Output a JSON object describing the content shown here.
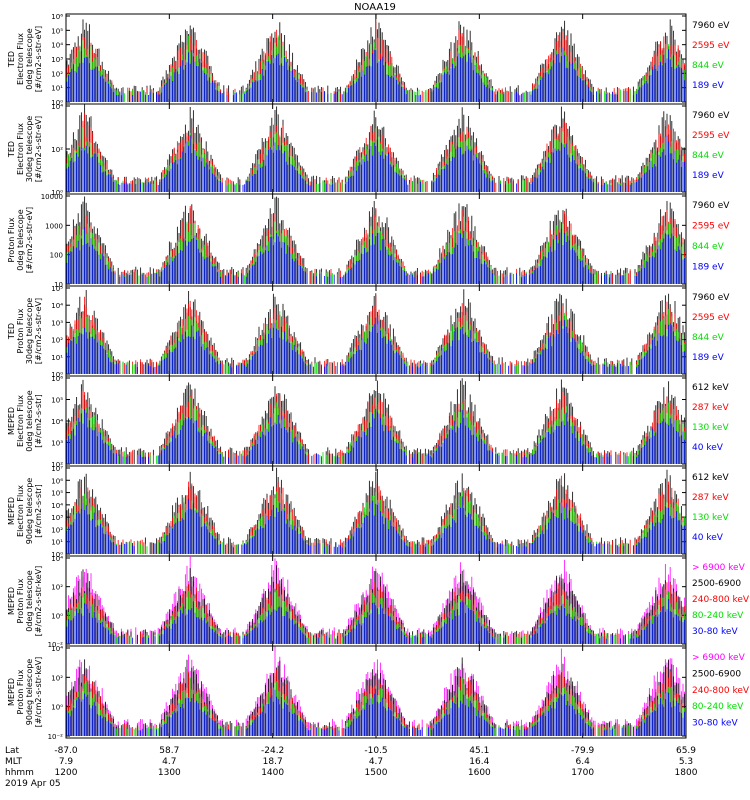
{
  "title": "NOAA19",
  "colors": {
    "black": "#000000",
    "red": "#ff0000",
    "green": "#00e000",
    "blue": "#0000ff",
    "magenta": "#ff00ff"
  },
  "chart_data": [
    {
      "type": "line",
      "ylabel": [
        "TED",
        "Electron Flux",
        "0deg telescope",
        "[#/cm2-s-str-eV]"
      ],
      "yticks": [
        "10⁰",
        "10¹",
        "10²",
        "10³",
        "10⁴",
        "10⁵",
        "10⁶"
      ],
      "ylog": true,
      "legend": [
        {
          "label": "7960 eV",
          "color": "#000000"
        },
        {
          "label": "2595 eV",
          "color": "#ff0000"
        },
        {
          "label": "844 eV",
          "color": "#00e000"
        },
        {
          "label": "189 eV",
          "color": "#0000ff"
        }
      ]
    },
    {
      "type": "line",
      "ylabel": [
        "TED",
        "Electron Flux",
        "30deg telescope",
        "[#/cm2-s-str-eV]"
      ],
      "yticks": [
        "10⁰",
        "10²",
        "10⁴"
      ],
      "ylog": true,
      "legend": [
        {
          "label": "7960 eV",
          "color": "#000000"
        },
        {
          "label": "2595 eV",
          "color": "#ff0000"
        },
        {
          "label": "844 eV",
          "color": "#00e000"
        },
        {
          "label": "189 eV",
          "color": "#0000ff"
        }
      ]
    },
    {
      "type": "line",
      "ylabel": [
        "Proton Flux",
        "0deg telescope",
        "[#/cm2-s-str-eV]"
      ],
      "yticks": [
        "10",
        "100",
        "1000",
        "10000"
      ],
      "ylog": true,
      "legend": [
        {
          "label": "7960 eV",
          "color": "#000000"
        },
        {
          "label": "2595 eV",
          "color": "#ff0000"
        },
        {
          "label": "844 eV",
          "color": "#00e000"
        },
        {
          "label": "189 eV",
          "color": "#0000ff"
        }
      ]
    },
    {
      "type": "line",
      "ylabel": [
        "TED",
        "Proton Flux",
        "30deg telescope",
        "[#/cm2-s-str-eV]"
      ],
      "yticks": [
        "10⁰",
        "10¹",
        "10²",
        "10³",
        "10⁴",
        "10⁵"
      ],
      "ylog": true,
      "legend": [
        {
          "label": "7960 eV",
          "color": "#000000"
        },
        {
          "label": "2595 eV",
          "color": "#ff0000"
        },
        {
          "label": "844 eV",
          "color": "#00e000"
        },
        {
          "label": "189 eV",
          "color": "#0000ff"
        }
      ]
    },
    {
      "type": "line",
      "ylabel": [
        "MEPED",
        "Electron Flux",
        "0deg telescope",
        "[#/cm2-s-str]"
      ],
      "yticks": [
        "10²",
        "10³",
        "10⁴",
        "10⁵",
        "10⁶"
      ],
      "ylog": true,
      "legend": [
        {
          "label": "612 keV",
          "color": "#000000"
        },
        {
          "label": "287 keV",
          "color": "#ff0000"
        },
        {
          "label": "130 keV",
          "color": "#00e000"
        },
        {
          "label": "40 keV",
          "color": "#0000ff"
        }
      ]
    },
    {
      "type": "line",
      "ylabel": [
        "MEPED",
        "Electron Flux",
        "90deg telescope",
        "[#/cm2-s-str]"
      ],
      "yticks": [
        "10⁰",
        "10¹",
        "10²",
        "10³",
        "10⁴",
        "10⁵",
        "10⁶",
        "10⁷"
      ],
      "ylog": true,
      "legend": [
        {
          "label": "612 keV",
          "color": "#000000"
        },
        {
          "label": "287 keV",
          "color": "#ff0000"
        },
        {
          "label": "130 keV",
          "color": "#00e000"
        },
        {
          "label": "40 keV",
          "color": "#0000ff"
        }
      ]
    },
    {
      "type": "line",
      "ylabel": [
        "MEPED",
        "Proton Flux",
        "0deg telescope",
        "[#/cm2-s-str-keV]"
      ],
      "yticks": [
        "10⁻²",
        "10⁰",
        "10²",
        "10⁴"
      ],
      "ylog": true,
      "legend": [
        {
          "label": "> 6900 keV",
          "color": "#ff00ff"
        },
        {
          "label": "2500-6900",
          "color": "#000000"
        },
        {
          "label": "240-800 keV",
          "color": "#ff0000"
        },
        {
          "label": "80-240 keV",
          "color": "#00e000"
        },
        {
          "label": "30-80 keV",
          "color": "#0000ff"
        }
      ]
    },
    {
      "type": "line",
      "ylabel": [
        "MEPED",
        "Proton Flux",
        "90deg telescope",
        "[#/cm2-s-str-keV]"
      ],
      "yticks": [
        "10⁻²",
        "10⁰",
        "10²",
        "10⁴"
      ],
      "ylog": true,
      "legend": [
        {
          "label": "> 6900 keV",
          "color": "#ff00ff"
        },
        {
          "label": "2500-6900",
          "color": "#000000"
        },
        {
          "label": "240-800 keV",
          "color": "#ff0000"
        },
        {
          "label": "80-240 keV",
          "color": "#00e000"
        },
        {
          "label": "30-80 keV",
          "color": "#0000ff"
        }
      ]
    }
  ],
  "footer": {
    "row_labels": [
      "Lat",
      "MLT",
      "hhmm"
    ],
    "columns": [
      [
        "-87.0",
        "7.9",
        "1200"
      ],
      [
        "58.7",
        "4.7",
        "1300"
      ],
      [
        "-24.2",
        "18.7",
        "1400"
      ],
      [
        "-10.5",
        "4.7",
        "1500"
      ],
      [
        "45.1",
        "16.4",
        "1600"
      ],
      [
        "-79.9",
        "6.4",
        "1700"
      ],
      [
        "65.9",
        "5.3",
        "1800"
      ]
    ],
    "date": "2019 Apr 05"
  }
}
